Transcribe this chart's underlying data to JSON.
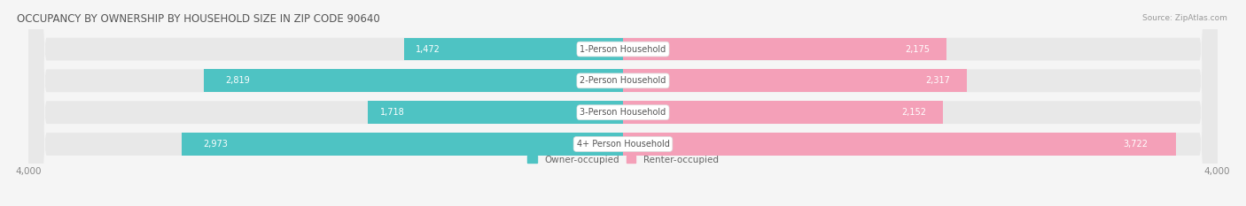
{
  "title": "OCCUPANCY BY OWNERSHIP BY HOUSEHOLD SIZE IN ZIP CODE 90640",
  "source": "Source: ZipAtlas.com",
  "categories": [
    "1-Person Household",
    "2-Person Household",
    "3-Person Household",
    "4+ Person Household"
  ],
  "owner_values": [
    1472,
    2819,
    1718,
    2973
  ],
  "renter_values": [
    2175,
    2317,
    2152,
    3722
  ],
  "axis_max": 4000,
  "owner_color": "#4EC3C3",
  "renter_color": "#F4A0B8",
  "bar_bg_color": "#E8E8E8",
  "fig_bg_color": "#F5F5F5",
  "title_fontsize": 8.5,
  "source_fontsize": 6.5,
  "bar_label_fontsize": 7,
  "category_fontsize": 7,
  "axis_fontsize": 7.5,
  "legend_fontsize": 7.5,
  "bar_height": 0.72,
  "figsize": [
    14.06,
    2.33
  ],
  "dpi": 100
}
